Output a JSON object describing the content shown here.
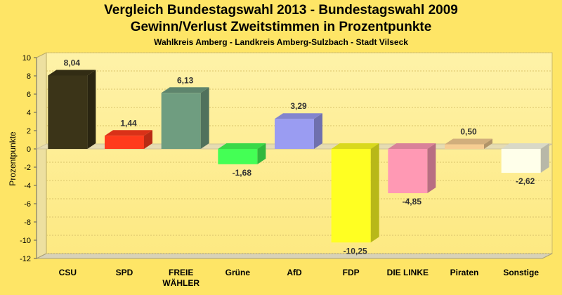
{
  "chart_data": {
    "type": "bar",
    "title": "Vergleich Bundestagswahl 2013 - Bundestagswahl 2009",
    "subtitle": "Gewinn/Verlust Zweitstimmen in Prozentpunkte",
    "subsubtitle": "Wahlkreis Amberg - Landkreis Amberg-Sulzbach - Stadt Vilseck",
    "xlabel": "",
    "ylabel": "Prozentpunkte",
    "ylim": [
      -12,
      10
    ],
    "yticks": [
      "10",
      "8",
      "6",
      "4",
      "2",
      "0",
      "-2",
      "-4",
      "-6",
      "-8",
      "-10",
      "-12"
    ],
    "categories": [
      "CSU",
      "SPD",
      "FREIE WÄHLER",
      "Grüne",
      "AfD",
      "FDP",
      "DIE LINKE",
      "Piraten",
      "Sonstige"
    ],
    "category_lines": [
      [
        "CSU"
      ],
      [
        "SPD"
      ],
      [
        "FREIE",
        "WÄHLER"
      ],
      [
        "Grüne"
      ],
      [
        "AfD"
      ],
      [
        "FDP"
      ],
      [
        "DIE LINKE"
      ],
      [
        "Piraten"
      ],
      [
        "Sonstige"
      ]
    ],
    "values": [
      8.04,
      1.44,
      6.13,
      -1.68,
      3.29,
      -10.25,
      -4.85,
      0.5,
      -2.62
    ],
    "value_labels": [
      "8,04",
      "1,44",
      "6,13",
      "-1,68",
      "3,29",
      "-10,25",
      "-4,85",
      "0,50",
      "-2,62"
    ],
    "colors": [
      "#3b3418",
      "#ff3a1c",
      "#6f9d80",
      "#44ff55",
      "#9a9cf2",
      "#ffff22",
      "#ff99b4",
      "#f6cd92",
      "#ffffea"
    ],
    "grid": true,
    "legend": "none"
  }
}
